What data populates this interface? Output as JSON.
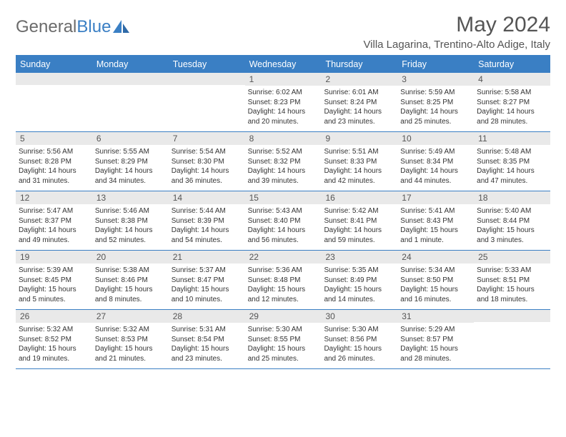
{
  "logo": {
    "text_gray": "General",
    "text_blue": "Blue"
  },
  "header": {
    "month_title": "May 2024",
    "location": "Villa Lagarina, Trentino-Alto Adige, Italy"
  },
  "colors": {
    "accent": "#3a7fc4",
    "header_text": "#ffffff",
    "day_num_bg": "#e9e9e9",
    "day_num_text": "#555555",
    "body_text": "#333333",
    "title_text": "#555555"
  },
  "day_names": [
    "Sunday",
    "Monday",
    "Tuesday",
    "Wednesday",
    "Thursday",
    "Friday",
    "Saturday"
  ],
  "weeks": [
    [
      {
        "empty": true
      },
      {
        "empty": true
      },
      {
        "empty": true
      },
      {
        "num": "1",
        "sunrise": "Sunrise: 6:02 AM",
        "sunset": "Sunset: 8:23 PM",
        "daylight1": "Daylight: 14 hours",
        "daylight2": "and 20 minutes."
      },
      {
        "num": "2",
        "sunrise": "Sunrise: 6:01 AM",
        "sunset": "Sunset: 8:24 PM",
        "daylight1": "Daylight: 14 hours",
        "daylight2": "and 23 minutes."
      },
      {
        "num": "3",
        "sunrise": "Sunrise: 5:59 AM",
        "sunset": "Sunset: 8:25 PM",
        "daylight1": "Daylight: 14 hours",
        "daylight2": "and 25 minutes."
      },
      {
        "num": "4",
        "sunrise": "Sunrise: 5:58 AM",
        "sunset": "Sunset: 8:27 PM",
        "daylight1": "Daylight: 14 hours",
        "daylight2": "and 28 minutes."
      }
    ],
    [
      {
        "num": "5",
        "sunrise": "Sunrise: 5:56 AM",
        "sunset": "Sunset: 8:28 PM",
        "daylight1": "Daylight: 14 hours",
        "daylight2": "and 31 minutes."
      },
      {
        "num": "6",
        "sunrise": "Sunrise: 5:55 AM",
        "sunset": "Sunset: 8:29 PM",
        "daylight1": "Daylight: 14 hours",
        "daylight2": "and 34 minutes."
      },
      {
        "num": "7",
        "sunrise": "Sunrise: 5:54 AM",
        "sunset": "Sunset: 8:30 PM",
        "daylight1": "Daylight: 14 hours",
        "daylight2": "and 36 minutes."
      },
      {
        "num": "8",
        "sunrise": "Sunrise: 5:52 AM",
        "sunset": "Sunset: 8:32 PM",
        "daylight1": "Daylight: 14 hours",
        "daylight2": "and 39 minutes."
      },
      {
        "num": "9",
        "sunrise": "Sunrise: 5:51 AM",
        "sunset": "Sunset: 8:33 PM",
        "daylight1": "Daylight: 14 hours",
        "daylight2": "and 42 minutes."
      },
      {
        "num": "10",
        "sunrise": "Sunrise: 5:49 AM",
        "sunset": "Sunset: 8:34 PM",
        "daylight1": "Daylight: 14 hours",
        "daylight2": "and 44 minutes."
      },
      {
        "num": "11",
        "sunrise": "Sunrise: 5:48 AM",
        "sunset": "Sunset: 8:35 PM",
        "daylight1": "Daylight: 14 hours",
        "daylight2": "and 47 minutes."
      }
    ],
    [
      {
        "num": "12",
        "sunrise": "Sunrise: 5:47 AM",
        "sunset": "Sunset: 8:37 PM",
        "daylight1": "Daylight: 14 hours",
        "daylight2": "and 49 minutes."
      },
      {
        "num": "13",
        "sunrise": "Sunrise: 5:46 AM",
        "sunset": "Sunset: 8:38 PM",
        "daylight1": "Daylight: 14 hours",
        "daylight2": "and 52 minutes."
      },
      {
        "num": "14",
        "sunrise": "Sunrise: 5:44 AM",
        "sunset": "Sunset: 8:39 PM",
        "daylight1": "Daylight: 14 hours",
        "daylight2": "and 54 minutes."
      },
      {
        "num": "15",
        "sunrise": "Sunrise: 5:43 AM",
        "sunset": "Sunset: 8:40 PM",
        "daylight1": "Daylight: 14 hours",
        "daylight2": "and 56 minutes."
      },
      {
        "num": "16",
        "sunrise": "Sunrise: 5:42 AM",
        "sunset": "Sunset: 8:41 PM",
        "daylight1": "Daylight: 14 hours",
        "daylight2": "and 59 minutes."
      },
      {
        "num": "17",
        "sunrise": "Sunrise: 5:41 AM",
        "sunset": "Sunset: 8:43 PM",
        "daylight1": "Daylight: 15 hours",
        "daylight2": "and 1 minute."
      },
      {
        "num": "18",
        "sunrise": "Sunrise: 5:40 AM",
        "sunset": "Sunset: 8:44 PM",
        "daylight1": "Daylight: 15 hours",
        "daylight2": "and 3 minutes."
      }
    ],
    [
      {
        "num": "19",
        "sunrise": "Sunrise: 5:39 AM",
        "sunset": "Sunset: 8:45 PM",
        "daylight1": "Daylight: 15 hours",
        "daylight2": "and 5 minutes."
      },
      {
        "num": "20",
        "sunrise": "Sunrise: 5:38 AM",
        "sunset": "Sunset: 8:46 PM",
        "daylight1": "Daylight: 15 hours",
        "daylight2": "and 8 minutes."
      },
      {
        "num": "21",
        "sunrise": "Sunrise: 5:37 AM",
        "sunset": "Sunset: 8:47 PM",
        "daylight1": "Daylight: 15 hours",
        "daylight2": "and 10 minutes."
      },
      {
        "num": "22",
        "sunrise": "Sunrise: 5:36 AM",
        "sunset": "Sunset: 8:48 PM",
        "daylight1": "Daylight: 15 hours",
        "daylight2": "and 12 minutes."
      },
      {
        "num": "23",
        "sunrise": "Sunrise: 5:35 AM",
        "sunset": "Sunset: 8:49 PM",
        "daylight1": "Daylight: 15 hours",
        "daylight2": "and 14 minutes."
      },
      {
        "num": "24",
        "sunrise": "Sunrise: 5:34 AM",
        "sunset": "Sunset: 8:50 PM",
        "daylight1": "Daylight: 15 hours",
        "daylight2": "and 16 minutes."
      },
      {
        "num": "25",
        "sunrise": "Sunrise: 5:33 AM",
        "sunset": "Sunset: 8:51 PM",
        "daylight1": "Daylight: 15 hours",
        "daylight2": "and 18 minutes."
      }
    ],
    [
      {
        "num": "26",
        "sunrise": "Sunrise: 5:32 AM",
        "sunset": "Sunset: 8:52 PM",
        "daylight1": "Daylight: 15 hours",
        "daylight2": "and 19 minutes."
      },
      {
        "num": "27",
        "sunrise": "Sunrise: 5:32 AM",
        "sunset": "Sunset: 8:53 PM",
        "daylight1": "Daylight: 15 hours",
        "daylight2": "and 21 minutes."
      },
      {
        "num": "28",
        "sunrise": "Sunrise: 5:31 AM",
        "sunset": "Sunset: 8:54 PM",
        "daylight1": "Daylight: 15 hours",
        "daylight2": "and 23 minutes."
      },
      {
        "num": "29",
        "sunrise": "Sunrise: 5:30 AM",
        "sunset": "Sunset: 8:55 PM",
        "daylight1": "Daylight: 15 hours",
        "daylight2": "and 25 minutes."
      },
      {
        "num": "30",
        "sunrise": "Sunrise: 5:30 AM",
        "sunset": "Sunset: 8:56 PM",
        "daylight1": "Daylight: 15 hours",
        "daylight2": "and 26 minutes."
      },
      {
        "num": "31",
        "sunrise": "Sunrise: 5:29 AM",
        "sunset": "Sunset: 8:57 PM",
        "daylight1": "Daylight: 15 hours",
        "daylight2": "and 28 minutes."
      },
      {
        "empty": true
      }
    ]
  ]
}
